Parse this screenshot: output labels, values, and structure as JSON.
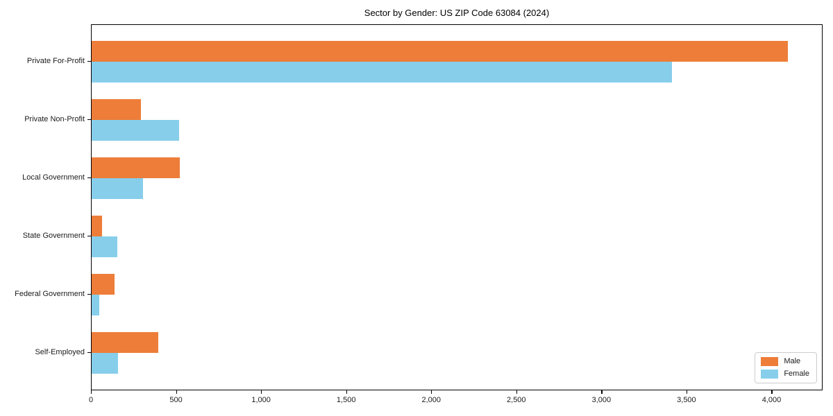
{
  "chart_data": {
    "type": "bar",
    "orientation": "horizontal",
    "title": "Sector by Gender: US ZIP Code 63084 (2024)",
    "categories": [
      "Private For-Profit",
      "Private Non-Profit",
      "Local Government",
      "State Government",
      "Federal Government",
      "Self-Employed"
    ],
    "series": [
      {
        "name": "Male",
        "color": "#ed7d39",
        "values": [
          4090,
          290,
          520,
          60,
          135,
          390
        ]
      },
      {
        "name": "Female",
        "color": "#87ceeb",
        "values": [
          3410,
          515,
          300,
          150,
          45,
          155
        ]
      }
    ],
    "xlabel": "",
    "ylabel": "",
    "xlim": [
      0,
      4300
    ],
    "xticks": [
      0,
      500,
      1000,
      1500,
      2000,
      2500,
      3000,
      3500,
      4000
    ],
    "xtick_labels": [
      "0",
      "500",
      "1,000",
      "1,500",
      "2,000",
      "2,500",
      "3,000",
      "3,500",
      "4,000"
    ],
    "grid": false,
    "legend": {
      "position": "lower right"
    }
  }
}
